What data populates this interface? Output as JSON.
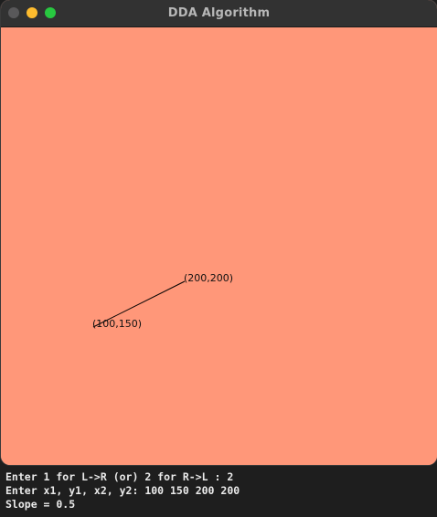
{
  "window": {
    "title": "DDA Algorithm",
    "canvas_color": "#ff9779"
  },
  "canvas": {
    "line_start_label": "(100,150)",
    "line_end_label": "(200,200)",
    "line_color": "#000000"
  },
  "terminal": {
    "lines": [
      "Enter 1 for L->R (or) 2 for R->L : 2",
      "Enter x1, y1, x2, y2: 100 150 200 200",
      "Slope = 0.5"
    ]
  }
}
